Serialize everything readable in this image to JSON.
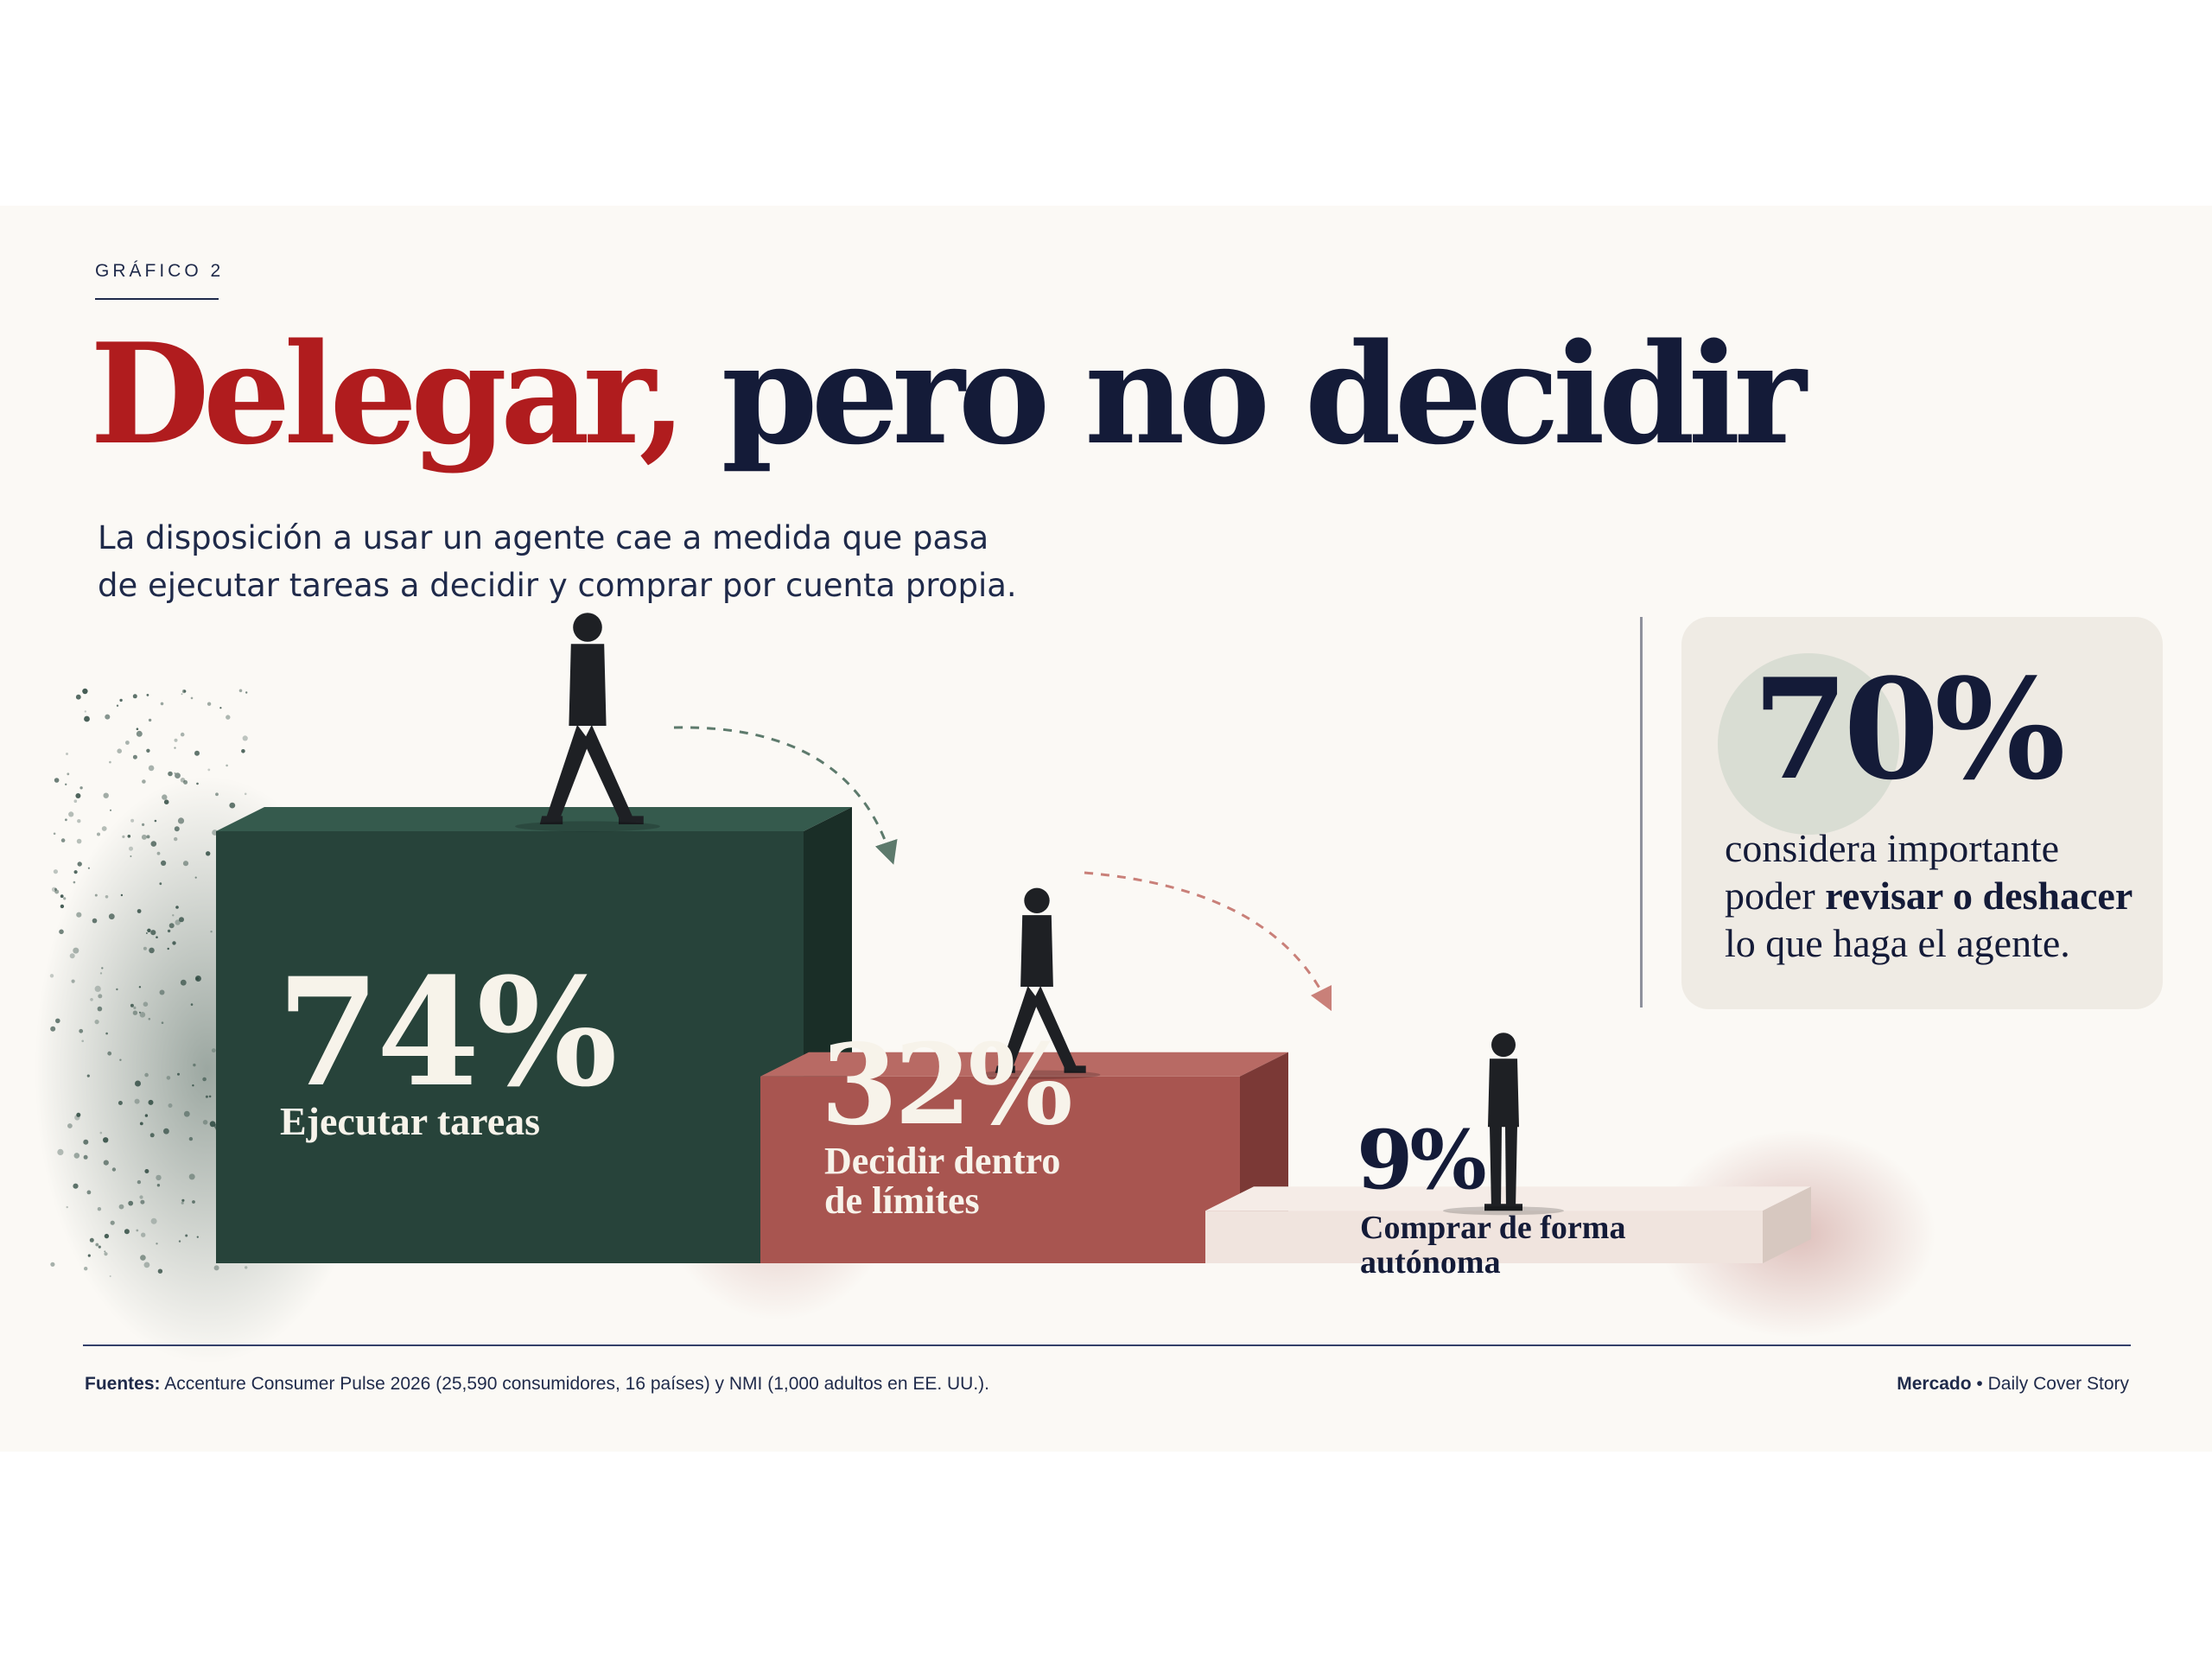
{
  "header": {
    "kicker": "GRÁFICO 2",
    "title_part1": "Delegar,",
    "title_part2": "pero no decidir",
    "subtitle_line1": "La disposición a usar un agente cae a medida que pasa",
    "subtitle_line2": "de ejecutar tareas a decidir y comprar por cuenta propia."
  },
  "chart_data": {
    "type": "bar",
    "categories": [
      "Ejecutar tareas",
      "Decidir dentro de límites",
      "Comprar de forma autónoma"
    ],
    "category_lines": [
      [
        "Ejecutar tareas"
      ],
      [
        "Decidir dentro",
        "de límites"
      ],
      [
        "Comprar de forma",
        "autónoma"
      ]
    ],
    "values": [
      74,
      32,
      9
    ],
    "value_labels": [
      "74%",
      "32%",
      "9%"
    ],
    "unit": "%",
    "colors": [
      "#27433a",
      "#a85550",
      "#f0e4de"
    ],
    "label_colors": [
      "#f7f3ea",
      "#f7f3ea",
      "#141b38"
    ],
    "title": "Delegar, pero no decidir"
  },
  "callout": {
    "value": "70%",
    "line1": "considera importante",
    "line2_pre": "poder ",
    "line2_bold": "revisar o deshacer",
    "line3": "lo que haga el agente."
  },
  "footer": {
    "source_label": "Fuentes:",
    "source_text": " Accenture Consumer Pulse 2026 (25,590 consumidores, 16 países) y NMI (1,000 adultos en EE. UU.).",
    "brand": "Mercado",
    "separator": " • ",
    "publication": "Daily Cover Story"
  },
  "colors": {
    "red": "#b01c1e",
    "navy": "#141b38",
    "green": "#27433a",
    "rose": "#a85550",
    "blush": "#f0e4de"
  }
}
